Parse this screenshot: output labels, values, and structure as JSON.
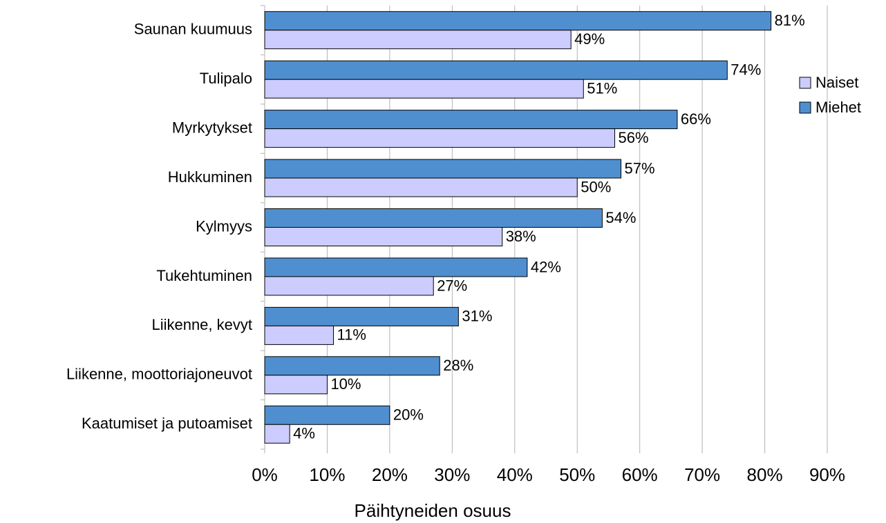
{
  "chart_data": {
    "type": "hbar",
    "xlabel": "Päihtyneiden osuus",
    "categories": [
      "Saunan kuumuus",
      "Tulipalo",
      "Myrkytykset",
      "Hukkuminen",
      "Kylmyys",
      "Tukehtuminen",
      "Liikenne, kevyt",
      "Liikenne, moottoriajoneuvot",
      "Kaatumiset ja putoamiset"
    ],
    "series": [
      {
        "name": "Naiset",
        "color": "#ccccff",
        "values": [
          49,
          51,
          56,
          50,
          38,
          27,
          11,
          10,
          4
        ],
        "value_labels": [
          "49%",
          "51%",
          "56%",
          "50%",
          "38%",
          "27%",
          "11%",
          "10%",
          "4%"
        ]
      },
      {
        "name": "Miehet",
        "color": "#4f8fcf",
        "values": [
          81,
          74,
          66,
          57,
          54,
          42,
          31,
          28,
          20
        ],
        "value_labels": [
          "81%",
          "74%",
          "66%",
          "57%",
          "54%",
          "42%",
          "31%",
          "28%",
          "20%"
        ]
      }
    ],
    "xlim": [
      0,
      90
    ],
    "xticks": [
      {
        "value": 0,
        "label": "0%"
      },
      {
        "value": 10,
        "label": "10%"
      },
      {
        "value": 20,
        "label": "20%"
      },
      {
        "value": 30,
        "label": "30%"
      },
      {
        "value": 40,
        "label": "40%"
      },
      {
        "value": 50,
        "label": "50%"
      },
      {
        "value": 60,
        "label": "60%"
      },
      {
        "value": 70,
        "label": "70%"
      },
      {
        "value": 80,
        "label": "80%"
      },
      {
        "value": 90,
        "label": "90%"
      }
    ],
    "grid": true,
    "legend": "right"
  }
}
